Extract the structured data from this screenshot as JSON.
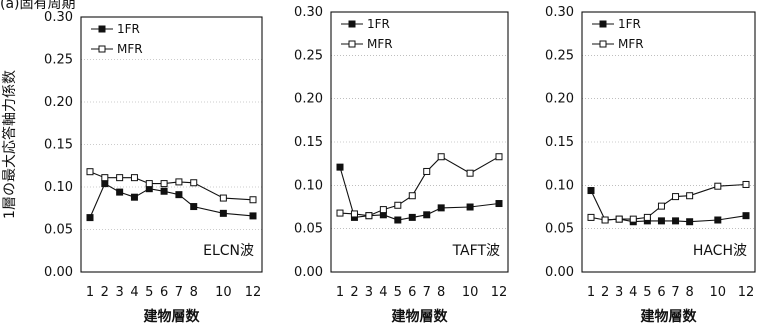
{
  "corner_text": "(a)固有周期",
  "chart_data": [
    {
      "type": "line",
      "ylabel": "1層の最大応答軸力係数",
      "xlabel": "建物層数",
      "wave_label": "ELCN波",
      "ylim": [
        0,
        0.3
      ],
      "yticks": [
        "0.00",
        "0.05",
        "0.10",
        "0.15",
        "0.20",
        "0.25",
        "0.30"
      ],
      "xticks": [
        "1",
        "2",
        "3",
        "4",
        "5",
        "6",
        "7",
        "8",
        "10",
        "12"
      ],
      "x": [
        1,
        2,
        3,
        4,
        5,
        6,
        7,
        8,
        10,
        12
      ],
      "grid": true,
      "legend_position": "top-left",
      "series": [
        {
          "name": "1FR",
          "marker": "filled-square",
          "values": [
            0.064,
            0.104,
            0.094,
            0.088,
            0.098,
            0.095,
            0.091,
            0.077,
            0.069,
            0.066
          ]
        },
        {
          "name": "MFR",
          "marker": "open-square",
          "values": [
            0.118,
            0.111,
            0.111,
            0.111,
            0.104,
            0.104,
            0.106,
            0.105,
            0.087,
            0.085
          ]
        }
      ]
    },
    {
      "type": "line",
      "ylabel": "",
      "xlabel": "建物層数",
      "wave_label": "TAFT波",
      "ylim": [
        0,
        0.3
      ],
      "yticks": [
        "0.00",
        "0.05",
        "0.10",
        "0.15",
        "0.20",
        "0.25",
        "0.30"
      ],
      "xticks": [
        "1",
        "2",
        "3",
        "4",
        "5",
        "6",
        "7",
        "8",
        "10",
        "12"
      ],
      "x": [
        1,
        2,
        3,
        4,
        5,
        6,
        7,
        8,
        10,
        12
      ],
      "grid": true,
      "legend_position": "top-left",
      "series": [
        {
          "name": "1FR",
          "marker": "filled-square",
          "values": [
            0.121,
            0.063,
            0.065,
            0.066,
            0.06,
            0.063,
            0.066,
            0.074,
            0.075,
            0.079
          ]
        },
        {
          "name": "MFR",
          "marker": "open-square",
          "values": [
            0.068,
            0.067,
            0.065,
            0.072,
            0.077,
            0.088,
            0.116,
            0.133,
            0.114,
            0.133
          ]
        }
      ]
    },
    {
      "type": "line",
      "ylabel": "",
      "xlabel": "建物層数",
      "wave_label": "HACH波",
      "ylim": [
        0,
        0.3
      ],
      "yticks": [
        "0.00",
        "0.05",
        "0.10",
        "0.15",
        "0.20",
        "0.25",
        "0.30"
      ],
      "xticks": [
        "1",
        "2",
        "3",
        "4",
        "5",
        "6",
        "7",
        "8",
        "10",
        "12"
      ],
      "x": [
        1,
        2,
        3,
        4,
        5,
        6,
        7,
        8,
        10,
        12
      ],
      "grid": true,
      "legend_position": "top-left",
      "series": [
        {
          "name": "1FR",
          "marker": "filled-square",
          "values": [
            0.094,
            0.06,
            0.061,
            0.058,
            0.059,
            0.059,
            0.059,
            0.058,
            0.06,
            0.065
          ]
        },
        {
          "name": "MFR",
          "marker": "open-square",
          "values": [
            0.063,
            0.06,
            0.061,
            0.061,
            0.063,
            0.076,
            0.087,
            0.088,
            0.099,
            0.101
          ]
        }
      ]
    }
  ]
}
